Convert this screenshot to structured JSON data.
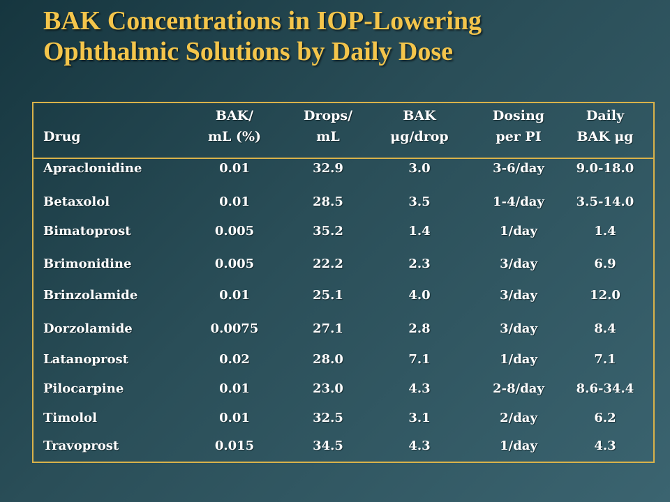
{
  "title": {
    "line1": "BAK Concentrations in IOP-Lowering",
    "line2": "Ophthalmic Solutions by Daily Dose"
  },
  "table": {
    "headers": [
      {
        "line1": "",
        "line2": "Drug"
      },
      {
        "line1": "BAK/",
        "line2": "mL (%)"
      },
      {
        "line1": "Drops/",
        "line2": "mL"
      },
      {
        "line1": "BAK",
        "line2": "μg/drop"
      },
      {
        "line1": "Dosing",
        "line2": "per PI"
      },
      {
        "line1": "Daily",
        "line2": "BAK μg"
      }
    ],
    "rows": [
      [
        "Apraclonidine",
        "0.01",
        "32.9",
        "3.0",
        "3-6/day",
        "9.0-18.0"
      ],
      [
        "Betaxolol",
        "0.01",
        "28.5",
        "3.5",
        "1-4/day",
        "3.5-14.0"
      ],
      [
        "Bimatoprost",
        "0.005",
        "35.2",
        "1.4",
        "1/day",
        "1.4"
      ],
      [
        "Brimonidine",
        "0.005",
        "22.2",
        "2.3",
        "3/day",
        "6.9"
      ],
      [
        "Brinzolamide",
        "0.01",
        "25.1",
        "4.0",
        "3/day",
        "12.0"
      ],
      [
        "Dorzolamide",
        "0.0075",
        "27.1",
        "2.8",
        "3/day",
        "8.4"
      ],
      [
        "Latanoprost",
        "0.02",
        "28.0",
        "7.1",
        "1/day",
        "7.1"
      ],
      [
        "Pilocarpine",
        "0.01",
        "23.0",
        "4.3",
        "2-8/day",
        "8.6-34.4"
      ],
      [
        "Timolol",
        "0.01",
        "32.5",
        "3.1",
        "2/day",
        "6.2"
      ],
      [
        "Travoprost",
        "0.015",
        "34.5",
        "4.3",
        "1/day",
        "4.3"
      ]
    ]
  }
}
